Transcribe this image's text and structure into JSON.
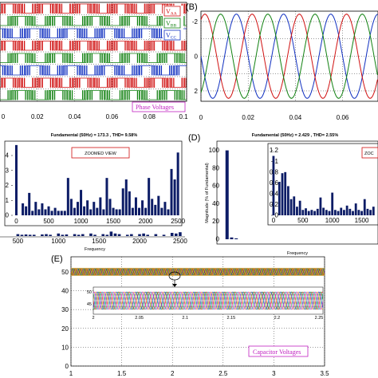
{
  "panels": {
    "a": {
      "legend": [
        {
          "main": "V",
          "sub": "AA",
          "color": "#d01010"
        },
        {
          "main": "V",
          "sub": "BB",
          "color": "#108010"
        },
        {
          "main": "V",
          "sub": "CC",
          "color": "#1030c0"
        }
      ],
      "annotation": "Phase Voltages",
      "annotation_color": "#c020c0"
    },
    "b": {
      "label": "(B)"
    },
    "c": {
      "title": "Fundamental (50Hz) = 173.3 , THD= 9.58%",
      "zoom_label": "ZOOMED VIEW",
      "xlabel": "Frequency"
    },
    "d": {
      "label": "(D)",
      "title": "Fundamental (50Hz) = 2.429 , THD= 2.55%",
      "zoom_label": "ZOC",
      "xlabel": "Frequency",
      "ylabel": "Magnitude (% of Fundamental)"
    },
    "e": {
      "label": "(E)",
      "annotation": "Capacitor Voltages",
      "annotation_color": "#c020c0"
    }
  },
  "chart_data": [
    {
      "type": "line",
      "panel": "A",
      "x_ticks": [
        "0",
        "0.02",
        "0.04",
        "0.06",
        "0.08",
        "0.1"
      ],
      "xlim": [
        0,
        0.1
      ],
      "series": [
        {
          "name": "VAA",
          "color": "#d01010"
        },
        {
          "name": "VBB",
          "color": "#108010"
        },
        {
          "name": "VCC",
          "color": "#1030c0"
        }
      ]
    },
    {
      "type": "line",
      "panel": "B",
      "x_ticks": [
        "0",
        "0.02",
        "0.04",
        "0.06"
      ],
      "y_ticks": [
        "-2",
        "0",
        "2"
      ],
      "xlim": [
        0,
        0.075
      ],
      "ylim": [
        -2.6,
        2.6
      ],
      "y_inverted": true,
      "amplitude": 2.43,
      "frequency": 50,
      "series": [
        {
          "phase_deg": 0,
          "color": "#1030c0"
        },
        {
          "phase_deg": -120,
          "color": "#d01010"
        },
        {
          "phase_deg": 120,
          "color": "#108010"
        }
      ]
    },
    {
      "type": "bar",
      "panel": "C-zoom",
      "x_ticks": [
        "0",
        "500",
        "1000",
        "1500",
        "2000",
        "2500"
      ],
      "y_ticks": [
        "0",
        "1",
        "2",
        "3",
        "4"
      ],
      "xlim": [
        -80,
        2560
      ],
      "ylim": [
        0,
        4.8
      ],
      "x": [
        0,
        100,
        150,
        200,
        250,
        300,
        350,
        400,
        450,
        500,
        550,
        600,
        650,
        700,
        750,
        800,
        850,
        900,
        950,
        1000,
        1050,
        1100,
        1150,
        1200,
        1250,
        1300,
        1350,
        1400,
        1450,
        1500,
        1550,
        1600,
        1650,
        1700,
        1750,
        1800,
        1850,
        1900,
        1950,
        2000,
        2050,
        2100,
        2150,
        2200,
        2250,
        2300,
        2350,
        2400,
        2450,
        2500
      ],
      "values": [
        4.7,
        0.8,
        0.6,
        1.5,
        0.3,
        0.9,
        0.4,
        0.8,
        0.4,
        0.6,
        0.3,
        0.5,
        0.3,
        0.3,
        0.3,
        2.5,
        1.1,
        0.5,
        0.9,
        1.7,
        0.6,
        1.0,
        0.4,
        0.9,
        0.5,
        1.2,
        0.4,
        2.5,
        1.1,
        0.5,
        0.4,
        0.4,
        1.8,
        2.4,
        1.6,
        0.5,
        1.2,
        0.5,
        1.0,
        0.5,
        2.5,
        1.1,
        0.7,
        1.3,
        0.5,
        0.9,
        0.4,
        3.1,
        2.4,
        4.2
      ],
      "color": "#0c1c66"
    },
    {
      "type": "bar",
      "panel": "C",
      "x_ticks": [
        "500",
        "1000",
        "1500",
        "2000",
        "2500"
      ],
      "xlim": [
        280,
        2560
      ],
      "xlabel": "Frequency",
      "x": [
        500,
        550,
        600,
        650,
        700,
        800,
        850,
        900,
        1000,
        1050,
        1100,
        1200,
        1250,
        1300,
        1400,
        1450,
        1550,
        1600,
        1650,
        1700,
        1750,
        1850,
        1900,
        2000,
        2050,
        2100,
        2200,
        2300,
        2400,
        2450,
        2500
      ],
      "values": [
        0.3,
        0.2,
        0.25,
        0.2,
        0.2,
        0.25,
        0.3,
        0.2,
        0.4,
        0.2,
        0.25,
        0.3,
        0.2,
        0.3,
        0.4,
        0.2,
        0.3,
        0.2,
        0.7,
        0.4,
        0.3,
        0.2,
        0.3,
        0.3,
        0.4,
        0.2,
        0.3,
        0.2,
        0.5,
        0.4,
        0.6
      ],
      "color": "#0c1c66"
    },
    {
      "type": "bar",
      "panel": "D",
      "y_ticks": [
        "0",
        "20",
        "40",
        "60",
        "80",
        "100"
      ],
      "xlim": [
        0,
        1700
      ],
      "ylim": [
        0,
        105
      ],
      "xlabel": "Frequency",
      "ylabel": "Magnitude (% of Fundamental)",
      "x": [
        50,
        100,
        150
      ],
      "values": [
        100,
        2,
        1
      ],
      "color": "#0c1c66"
    },
    {
      "type": "bar",
      "panel": "D-zoom",
      "x_ticks": [
        "0",
        "500",
        "1000",
        "1500"
      ],
      "y_ticks": [
        "0",
        "0.2",
        "0.4",
        "0.6",
        "0.8",
        "1",
        "1.2"
      ],
      "xlim": [
        -40,
        1750
      ],
      "ylim": [
        0,
        1.27
      ],
      "x": [
        0,
        100,
        150,
        200,
        250,
        300,
        350,
        400,
        450,
        500,
        550,
        600,
        650,
        700,
        750,
        800,
        850,
        900,
        950,
        1000,
        1050,
        1100,
        1150,
        1200,
        1250,
        1300,
        1350,
        1400,
        1450,
        1500,
        1550,
        1600,
        1650,
        1700
      ],
      "values": [
        1.1,
        0.62,
        0.78,
        0.8,
        0.54,
        0.3,
        0.35,
        0.16,
        0.27,
        0.1,
        0.13,
        0.08,
        0.1,
        0.08,
        0.12,
        0.33,
        0.14,
        0.1,
        0.08,
        0.42,
        0.1,
        0.08,
        0.14,
        0.1,
        0.18,
        0.12,
        0.08,
        0.22,
        0.1,
        0.08,
        0.3,
        0.12,
        0.1,
        0.16
      ],
      "color": "#0c1c66"
    },
    {
      "type": "line",
      "panel": "E",
      "x_ticks": [
        "1",
        "1.5",
        "2",
        "2.5",
        "3",
        "3.5"
      ],
      "y_ticks": [
        "0",
        "10",
        "20",
        "30",
        "40",
        "50"
      ],
      "xlim": [
        1,
        3.5
      ],
      "ylim": [
        0,
        58
      ],
      "band_value": 50,
      "inset": {
        "y_ticks": [
          "50",
          "45"
        ],
        "x_ticks": [
          "2",
          "2.05",
          "2.1",
          "2.15",
          "2.2",
          "2.25"
        ]
      }
    }
  ]
}
